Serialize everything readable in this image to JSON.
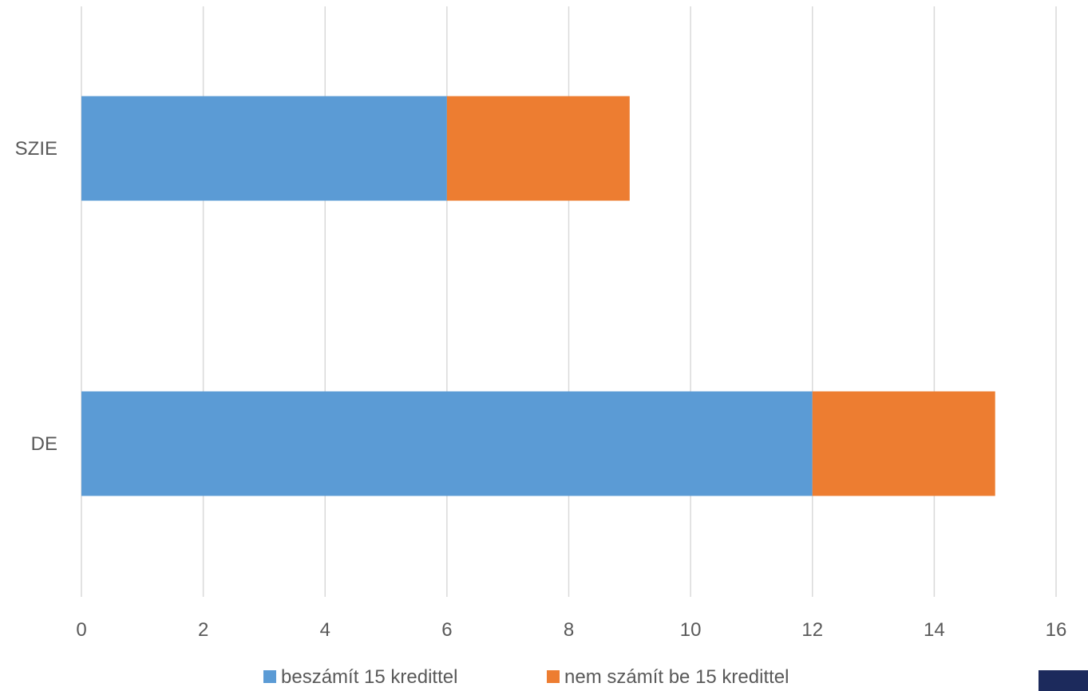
{
  "chart_data": {
    "type": "bar",
    "orientation": "horizontal",
    "stacked": true,
    "categories": [
      "SZIE",
      "DE"
    ],
    "series": [
      {
        "name": "beszámít 15 kredittel",
        "values": [
          6,
          12
        ],
        "color": "#5b9bd5"
      },
      {
        "name": "nem számít be 15 kredittel",
        "values": [
          3,
          3
        ],
        "color": "#ed7d31"
      }
    ],
    "xlim": [
      0,
      16
    ],
    "xticks": [
      0,
      2,
      4,
      6,
      8,
      10,
      12,
      14,
      16
    ],
    "xtick_labels": [
      "0",
      "2",
      "4",
      "6",
      "8",
      "10",
      "12",
      "14",
      "16"
    ],
    "grid": true,
    "legend_position": "bottom"
  },
  "colors": {
    "grid": "#d9d9d9",
    "text": "#595959",
    "corner_block": "#1c2a5c"
  }
}
